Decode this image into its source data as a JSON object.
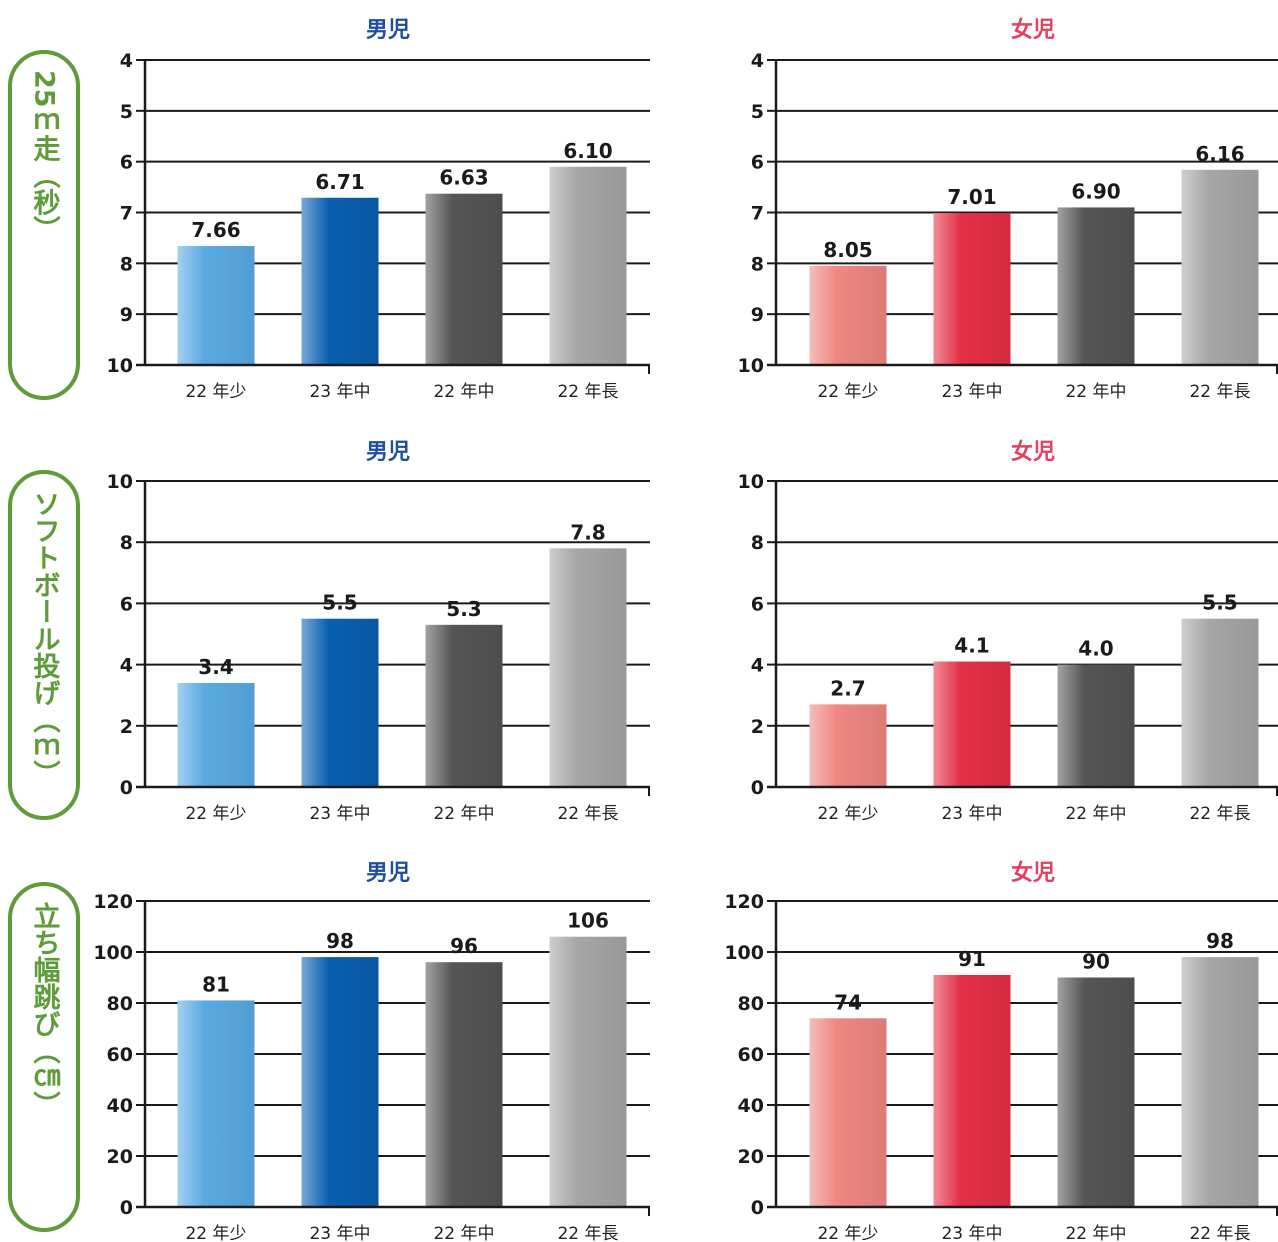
{
  "colors": {
    "frame_green": "#5f9b3a",
    "boys_title": "#1f4e9c",
    "girls_title": "#e5405f",
    "bar_light_blue": "#5aaae2",
    "bar_dark_blue": "#0a5fb0",
    "bar_dark_gray": "#555555",
    "bar_light_gray": "#a6a6a6",
    "bar_pink": "#ee8783",
    "bar_red": "#e52f47"
  },
  "row_labels": [
    "25ｍ走（秒）",
    "ソフトボール投げ（ｍ）",
    "立ち幅跳び（㎝）"
  ],
  "chart_data": [
    {
      "type": "bar",
      "title": "男児",
      "categories": [
        "22 年少",
        "23 年中",
        "22 年中",
        "22 年長"
      ],
      "values": [
        7.66,
        6.71,
        6.63,
        6.1
      ],
      "value_labels": [
        "7.66",
        "6.71",
        "6.63",
        "6.10"
      ],
      "ylim": [
        10,
        4
      ],
      "yticks": [
        4,
        5,
        6,
        7,
        8,
        9,
        10
      ],
      "inverted": true,
      "grid": true,
      "bar_colors": [
        "#5aaae2",
        "#0a5fb0",
        "#555555",
        "#a6a6a6"
      ]
    },
    {
      "type": "bar",
      "title": "女児",
      "categories": [
        "22 年少",
        "23 年中",
        "22 年中",
        "22 年長"
      ],
      "values": [
        8.05,
        7.01,
        6.9,
        6.16
      ],
      "value_labels": [
        "8.05",
        "7.01",
        "6.90",
        "6.16"
      ],
      "ylim": [
        10,
        4
      ],
      "yticks": [
        4,
        5,
        6,
        7,
        8,
        9,
        10
      ],
      "inverted": true,
      "grid": true,
      "bar_colors": [
        "#ee8783",
        "#e52f47",
        "#555555",
        "#a6a6a6"
      ]
    },
    {
      "type": "bar",
      "title": "男児",
      "categories": [
        "22 年少",
        "23 年中",
        "22 年中",
        "22 年長"
      ],
      "values": [
        3.4,
        5.5,
        5.3,
        7.8
      ],
      "value_labels": [
        "3.4",
        "5.5",
        "5.3",
        "7.8"
      ],
      "ylim": [
        0,
        10
      ],
      "yticks": [
        10,
        8,
        6,
        4,
        2,
        0
      ],
      "inverted": false,
      "grid": true,
      "bar_colors": [
        "#5aaae2",
        "#0a5fb0",
        "#555555",
        "#a6a6a6"
      ]
    },
    {
      "type": "bar",
      "title": "女児",
      "categories": [
        "22 年少",
        "23 年中",
        "22 年中",
        "22 年長"
      ],
      "values": [
        2.7,
        4.1,
        4.0,
        5.5
      ],
      "value_labels": [
        "2.7",
        "4.1",
        "4.0",
        "5.5"
      ],
      "ylim": [
        0,
        10
      ],
      "yticks": [
        10,
        8,
        6,
        4,
        2,
        0
      ],
      "inverted": false,
      "grid": true,
      "bar_colors": [
        "#ee8783",
        "#e52f47",
        "#555555",
        "#a6a6a6"
      ]
    },
    {
      "type": "bar",
      "title": "男児",
      "categories": [
        "22 年少",
        "23 年中",
        "22 年中",
        "22 年長"
      ],
      "values": [
        81,
        98,
        96,
        106
      ],
      "value_labels": [
        "81",
        "98",
        "96",
        "106"
      ],
      "ylim": [
        0,
        120
      ],
      "yticks": [
        120,
        100,
        80,
        60,
        40,
        20,
        0
      ],
      "inverted": false,
      "grid": true,
      "bar_colors": [
        "#5aaae2",
        "#0a5fb0",
        "#555555",
        "#a6a6a6"
      ]
    },
    {
      "type": "bar",
      "title": "女児",
      "categories": [
        "22 年少",
        "23 年中",
        "22 年中",
        "22 年長"
      ],
      "values": [
        74,
        91,
        90,
        98
      ],
      "value_labels": [
        "74",
        "91",
        "90",
        "98"
      ],
      "ylim": [
        0,
        120
      ],
      "yticks": [
        120,
        100,
        80,
        60,
        40,
        20,
        0
      ],
      "inverted": false,
      "grid": true,
      "bar_colors": [
        "#ee8783",
        "#e52f47",
        "#555555",
        "#a6a6a6"
      ]
    }
  ]
}
